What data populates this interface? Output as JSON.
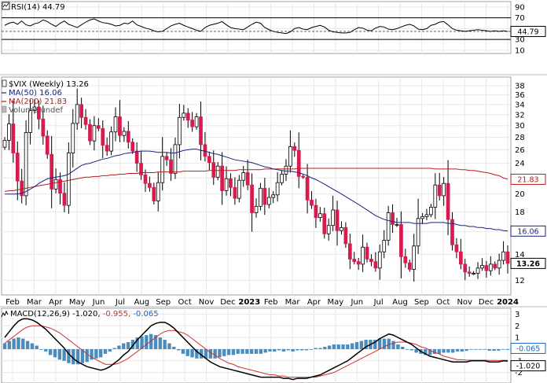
{
  "chart_data": {
    "type": "candlestick",
    "panels": {
      "rsi": {
        "legend": "RSI(14) 44.79",
        "value": 44.79,
        "value_label": "44.79",
        "y_ticks": [
          90,
          70,
          50,
          30,
          10
        ],
        "y_tick_labels": [
          "90",
          "70",
          "50",
          "30",
          "10"
        ],
        "ylim": [
          4,
          100
        ],
        "reference_lines": [
          70,
          30
        ],
        "series": [
          56,
          60,
          62,
          58,
          64,
          57,
          55,
          59,
          61,
          66,
          63,
          58,
          54,
          60,
          64,
          58,
          55,
          52,
          57,
          62,
          66,
          68,
          64,
          61,
          60,
          58,
          55,
          56,
          60,
          59,
          64,
          57,
          54,
          51,
          49,
          46,
          44,
          45,
          50,
          55,
          58,
          60,
          56,
          53,
          50,
          47,
          45,
          52,
          56,
          58,
          60,
          63,
          57,
          52,
          50,
          49,
          48,
          53,
          58,
          62,
          60,
          52,
          48,
          45,
          43,
          42,
          41,
          44,
          50,
          52,
          49,
          48,
          52,
          54,
          56,
          53,
          47,
          44,
          43,
          42,
          42,
          43,
          48,
          52,
          51,
          47,
          46,
          51,
          54,
          53,
          49,
          48,
          50,
          53,
          56,
          58,
          55,
          49,
          48,
          50,
          56,
          58,
          62,
          63,
          57,
          50,
          47,
          46,
          45,
          46,
          47,
          48,
          47,
          46,
          45,
          46,
          45,
          46,
          44.79
        ]
      },
      "price": {
        "legend": [
          "$VIX (Weekly) 13.26",
          "MA(50) 16.06",
          "MA(200) 21.83",
          "Volume undef"
        ],
        "legend_colors": [
          "#000000",
          "#1a237e",
          "#b71c1c",
          "#555555"
        ],
        "log_scale": true,
        "y_ticks": [
          12,
          14,
          16,
          18,
          20,
          22,
          24,
          26,
          28,
          30,
          32,
          34,
          36,
          38
        ],
        "y_tick_labels": [
          "12",
          "14",
          "16",
          "18",
          "20",
          "22",
          "24",
          "26",
          "28",
          "30",
          "32",
          "34",
          "36",
          "38"
        ],
        "ylim": [
          11.0,
          40.0
        ],
        "badges": [
          {
            "label": "21.83",
            "value": 21.83,
            "color": "#b71c1c"
          },
          {
            "label": "16.06",
            "value": 16.06,
            "color": "#1a237e"
          },
          {
            "label": "13.26",
            "value": 13.26,
            "color": "#000000"
          }
        ],
        "closes": [
          27.5,
          30.3,
          25.5,
          21.6,
          19.8,
          28.8,
          32.8,
          33.5,
          31.2,
          28.2,
          25.3,
          20.6,
          21.8,
          20.1,
          18.7,
          25.5,
          30.4,
          34.0,
          31.5,
          30.2,
          27.4,
          30.0,
          29.5,
          26.7,
          25.8,
          28.9,
          31.6,
          28.3,
          29.0,
          27.2,
          25.8,
          24.0,
          22.4,
          21.3,
          20.8,
          19.2,
          21.4,
          25.0,
          24.5,
          22.6,
          26.8,
          31.5,
          32.3,
          31.0,
          29.8,
          31.6,
          26.8,
          25.0,
          24.1,
          22.1,
          23.6,
          20.4,
          21.9,
          20.8,
          19.5,
          21.7,
          22.7,
          21.1,
          17.9,
          18.6,
          20.7,
          18.8,
          19.6,
          19.9,
          21.4,
          22.5,
          23.6,
          26.5,
          25.9,
          22.2,
          22.1,
          19.3,
          18.7,
          17.4,
          17.8,
          15.8,
          16.6,
          18.2,
          16.1,
          16.4,
          14.9,
          13.6,
          13.4,
          13.2,
          14.6,
          13.6,
          13.4,
          12.9,
          14.2,
          15.2,
          17.9,
          16.7,
          16.7,
          13.8,
          13.3,
          12.8,
          14.7,
          17.3,
          17.5,
          17.7,
          18.5,
          21.1,
          19.8,
          21.3,
          17.2,
          14.8,
          14.2,
          13.2,
          12.6,
          12.5,
          12.5,
          12.9,
          13.1,
          12.7,
          13.2,
          12.9,
          13.5,
          14.2,
          13.26
        ],
        "ma50": [
          20.0,
          20.0,
          20.0,
          20.0,
          20.1,
          20.3,
          20.6,
          20.9,
          21.3,
          21.6,
          21.9,
          22.0,
          22.1,
          22.2,
          22.3,
          22.5,
          22.9,
          23.3,
          23.7,
          23.9,
          24.0,
          24.2,
          24.4,
          24.6,
          24.7,
          24.9,
          25.1,
          25.2,
          25.4,
          25.5,
          25.6,
          25.7,
          25.8,
          25.8,
          25.8,
          25.7,
          25.6,
          25.6,
          25.6,
          25.5,
          25.5,
          25.7,
          25.9,
          26.0,
          26.1,
          26.1,
          25.9,
          25.8,
          25.6,
          25.4,
          25.3,
          25.1,
          24.9,
          24.7,
          24.5,
          24.4,
          24.3,
          24.2,
          24.1,
          23.9,
          23.7,
          23.5,
          23.4,
          23.2,
          23.1,
          23.0,
          22.9,
          22.9,
          22.8,
          22.7,
          22.5,
          22.3,
          22.0,
          21.8,
          21.5,
          21.2,
          20.9,
          20.6,
          20.3,
          20.0,
          19.7,
          19.4,
          19.1,
          18.8,
          18.5,
          18.2,
          17.9,
          17.6,
          17.4,
          17.2,
          17.1,
          17.0,
          16.9,
          16.9,
          16.9,
          16.9,
          16.8,
          16.8,
          16.8,
          16.8,
          16.9,
          16.9,
          16.9,
          16.9,
          16.8,
          16.8,
          16.7,
          16.6,
          16.6,
          16.5,
          16.5,
          16.4,
          16.4,
          16.3,
          16.3,
          16.2,
          16.2,
          16.1,
          16.06
        ],
        "ma200": [
          20.3,
          20.4,
          20.4,
          20.5,
          20.6,
          20.7,
          20.8,
          20.9,
          21.0,
          21.1,
          21.2,
          21.3,
          21.4,
          21.5,
          21.6,
          21.7,
          21.8,
          21.9,
          22.0,
          22.1,
          22.1,
          22.2,
          22.2,
          22.3,
          22.3,
          22.4,
          22.4,
          22.5,
          22.5,
          22.6,
          22.6,
          22.6,
          22.7,
          22.7,
          22.7,
          22.7,
          22.8,
          22.8,
          22.8,
          22.8,
          22.8,
          22.8,
          22.9,
          22.9,
          22.9,
          22.9,
          22.9,
          22.9,
          23.0,
          23.0,
          23.0,
          23.0,
          23.0,
          23.0,
          23.0,
          23.1,
          23.1,
          23.1,
          23.1,
          23.1,
          23.1,
          23.2,
          23.2,
          23.2,
          23.2,
          23.2,
          23.2,
          23.2,
          23.2,
          23.3,
          23.3,
          23.3,
          23.3,
          23.3,
          23.3,
          23.3,
          23.3,
          23.3,
          23.3,
          23.3,
          23.3,
          23.3,
          23.3,
          23.3,
          23.3,
          23.3,
          23.3,
          23.3,
          23.3,
          23.3,
          23.3,
          23.3,
          23.3,
          23.3,
          23.3,
          23.3,
          23.3,
          23.3,
          23.3,
          23.3,
          23.3,
          23.2,
          23.2,
          23.2,
          23.2,
          23.2,
          23.2,
          23.1,
          23.1,
          23.0,
          23.0,
          22.9,
          22.8,
          22.7,
          22.6,
          22.4,
          22.3,
          22.0,
          21.83
        ]
      },
      "macd": {
        "legend": "MACD(12,26,9) -1.020, -0.955, -0.065",
        "legend_parts": [
          {
            "text": "MACD(12,26,9)",
            "color": "#000000"
          },
          {
            "text": " -1.020,",
            "color": "#000000"
          },
          {
            "text": " -0.955,",
            "color": "#d32f2f"
          },
          {
            "text": " -0.065",
            "color": "#1565c0"
          }
        ],
        "y_ticks": [
          3,
          2,
          1,
          0,
          -1,
          -2
        ],
        "y_tick_labels": [
          "3",
          "2",
          "1",
          "0",
          "-1",
          "-2"
        ],
        "ylim": [
          -2.9,
          3.5
        ],
        "badges": [
          {
            "label": "-0.065",
            "value": -0.065,
            "color": "#1565c0"
          },
          {
            "label": "-1.020",
            "value": -1.02,
            "color": "#000000"
          }
        ],
        "macd": [
          1.0,
          1.5,
          2.0,
          2.4,
          2.6,
          2.6,
          2.5,
          2.3,
          2.0,
          1.7,
          1.3,
          0.9,
          0.5,
          0.1,
          -0.4,
          -0.8,
          -1.1,
          -1.3,
          -1.5,
          -1.6,
          -1.7,
          -1.8,
          -1.7,
          -1.5,
          -1.2,
          -0.9,
          -0.5,
          -0.2,
          0.3,
          0.8,
          1.2,
          1.6,
          2.0,
          2.2,
          2.3,
          2.3,
          2.1,
          1.8,
          1.4,
          1.0,
          0.6,
          0.2,
          -0.2,
          -0.5,
          -0.8,
          -1.1,
          -1.3,
          -1.5,
          -1.6,
          -1.7,
          -1.8,
          -1.9,
          -2.0,
          -2.1,
          -2.2,
          -2.3,
          -2.4,
          -2.4,
          -2.4,
          -2.4,
          -2.4,
          -2.5,
          -2.5,
          -2.6,
          -2.5,
          -2.5,
          -2.5,
          -2.4,
          -2.3,
          -2.2,
          -2.0,
          -1.8,
          -1.6,
          -1.4,
          -1.2,
          -1.0,
          -0.7,
          -0.4,
          -0.1,
          0.2,
          0.4,
          0.6,
          0.9,
          1.1,
          1.3,
          1.2,
          1.0,
          0.8,
          0.6,
          0.4,
          0.1,
          -0.2,
          -0.4,
          -0.6,
          -0.7,
          -0.8,
          -0.9,
          -1.0,
          -1.1,
          -1.1,
          -1.1,
          -1.1,
          -1.0,
          -1.0,
          -1.0,
          -1.0,
          -1.1,
          -1.1,
          -1.1,
          -1.0,
          -1.02
        ],
        "signal": [
          0.5,
          0.8,
          1.1,
          1.4,
          1.7,
          1.9,
          2.0,
          2.0,
          2.0,
          1.9,
          1.8,
          1.6,
          1.4,
          1.1,
          0.8,
          0.5,
          0.2,
          -0.1,
          -0.4,
          -0.7,
          -0.9,
          -1.1,
          -1.3,
          -1.3,
          -1.3,
          -1.2,
          -1.0,
          -0.8,
          -0.5,
          -0.2,
          0.1,
          0.4,
          0.7,
          1.0,
          1.3,
          1.5,
          1.6,
          1.6,
          1.5,
          1.4,
          1.2,
          0.9,
          0.6,
          0.3,
          0.0,
          -0.3,
          -0.5,
          -0.8,
          -1.0,
          -1.2,
          -1.3,
          -1.5,
          -1.6,
          -1.7,
          -1.8,
          -1.9,
          -2.0,
          -2.1,
          -2.2,
          -2.2,
          -2.3,
          -2.3,
          -2.4,
          -2.4,
          -2.4,
          -2.4,
          -2.4,
          -2.4,
          -2.4,
          -2.3,
          -2.2,
          -2.1,
          -2.0,
          -1.8,
          -1.6,
          -1.4,
          -1.2,
          -1.0,
          -0.8,
          -0.6,
          -0.4,
          -0.2,
          0.0,
          0.2,
          0.4,
          0.5,
          0.6,
          0.6,
          0.6,
          0.5,
          0.4,
          0.2,
          0.1,
          -0.1,
          -0.3,
          -0.4,
          -0.6,
          -0.7,
          -0.8,
          -0.9,
          -0.9,
          -0.95,
          -0.95,
          -0.95,
          -0.95,
          -0.95,
          -0.96,
          -0.96,
          -0.97,
          -0.96,
          -0.955
        ]
      }
    },
    "x_axis": {
      "labels": [
        "Feb",
        "Mar",
        "Apr",
        "May",
        "Jun",
        "Jul",
        "Aug",
        "Sep",
        "Oct",
        "Nov",
        "Dec",
        "2023",
        "Feb",
        "Mar",
        "Apr",
        "May",
        "Jun",
        "Jul",
        "Aug",
        "Sep",
        "Oct",
        "Nov",
        "Dec",
        "2024"
      ],
      "bold": [
        "2023",
        "2024"
      ]
    }
  },
  "colors": {
    "up_candle": "#ffffff",
    "down_candle": "#d81b4e",
    "wick": "#000000",
    "ma50": "#1a237e",
    "ma200": "#b71c1c",
    "macd_line": "#000000",
    "signal_line": "#d32f2f",
    "histogram": "#4a8dbd",
    "grid": "#e8e8e8",
    "frame": "#888888"
  }
}
